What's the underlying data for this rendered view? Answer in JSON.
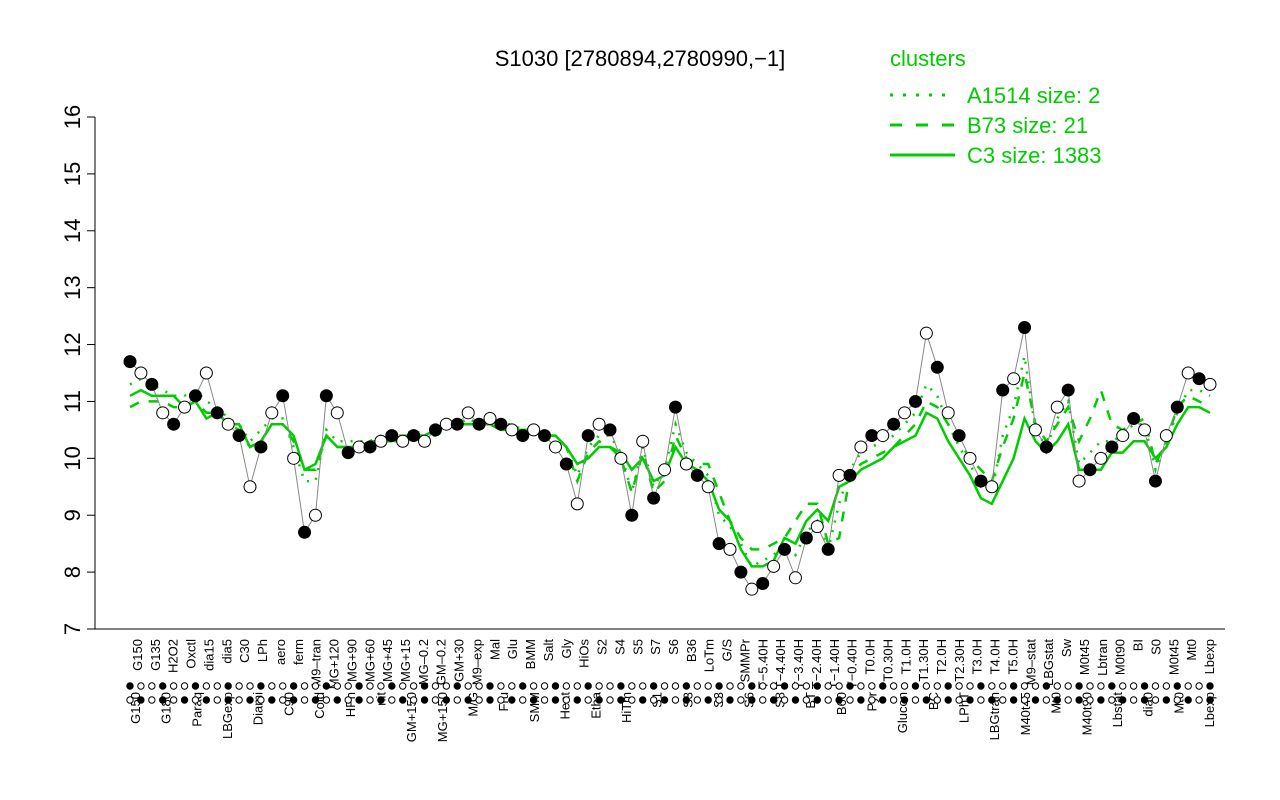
{
  "chart_data": {
    "type": "line",
    "title": "S1030 [2780894,2780990,−1]",
    "xlabel": "",
    "ylabel": "",
    "ylim": [
      7,
      16
    ],
    "yticks": [
      7,
      8,
      9,
      10,
      11,
      12,
      13,
      14,
      15,
      16
    ],
    "colors": {
      "line": "#00cc00",
      "point_fill_open": "#ffffff",
      "point_fill_solid": "#000000",
      "legend": "#00cc00"
    },
    "legend": {
      "title": "clusters",
      "placement": "top-right",
      "entries": [
        {
          "label": "A1514 size: 2",
          "style": "dotted"
        },
        {
          "label": "B73 size: 21",
          "style": "dashed"
        },
        {
          "label": "C3 size: 1383",
          "style": "solid"
        }
      ]
    },
    "categories": [
      "G150",
      "G180",
      "G135",
      "H2O2",
      "Paraq",
      "Oxctl",
      "LBGexp",
      "dia15",
      "Diami",
      "dia5",
      "C30",
      "C90",
      "Cold",
      "LPh",
      "HPh",
      "aero",
      "nit",
      "ferm",
      "GM+150",
      "MG+150",
      "M9–tran",
      "MG+120",
      "MG+90",
      "M9–90",
      "MG+60",
      "MG+45",
      "MG–120",
      "MG+15",
      "MG–0.2",
      "GM–0.1",
      "GM–60",
      "GM–30",
      "GM+5",
      "GM+15",
      "GM+30",
      "GM+60",
      "GM+90",
      "GM+120",
      "GM–0.2",
      "M9–exp",
      "M/G",
      "Mal",
      "Fru",
      "Glu",
      "SMM",
      "BMM",
      "Heat",
      "Salt",
      "Etha",
      "Gly",
      "HiTm",
      "HiOs",
      "S1",
      "S2",
      "S3",
      "S4",
      "S5",
      "S6",
      "S7",
      "S8",
      "BT",
      "B36",
      "B60",
      "LoTm",
      "Pyr",
      "G/S",
      "Glucon",
      "SMMPr",
      "T–5.40H",
      "T–4.40H",
      "T–3.40H",
      "T–2.40H",
      "T–1.40H",
      "T–0.40H",
      "T0.0H",
      "T0.30H",
      "T1.0H",
      "T1.30H",
      "T2.0H",
      "T2.30H",
      "T3.0H",
      "T4.0H",
      "T5.0H",
      "M9–stat",
      "LBGstat",
      "BC",
      "Sw",
      "LPhT",
      "LBGtran",
      "M0t45",
      "M40t45",
      "Lbtran",
      "Mt0",
      "M0t90",
      "Lbstat",
      "BI",
      "S0",
      "dia0",
      "Lbexp",
      "Mt0"
    ],
    "x_tick_labels_row1": [
      "G150",
      "G135",
      "H2O2",
      "Oxctl",
      "dia15",
      "dia5",
      "C30",
      "LPh",
      "aero",
      "ferm",
      "M9–tran",
      "MG+120",
      "MG+90",
      "MG+60",
      "MG+45",
      "MG+15",
      "MG–0.2",
      "GM–0.2",
      "GM+30",
      "M9–exp",
      "Mal",
      "Glu",
      "BMM",
      "Salt",
      "Gly",
      "HiOs",
      "S2",
      "S4",
      "S5",
      "S7",
      "S6",
      "B36",
      "LoTm",
      "G/S",
      "SMMPr",
      "T−5.40H",
      "T−4.40H",
      "T−3.40H",
      "T−2.40H",
      "T−1.40H",
      "T−0.40H",
      "T0.0H",
      "T0.30H",
      "T1.0H",
      "T1.30H",
      "T2.0H",
      "T2.30H",
      "T3.0H",
      "T4.0H",
      "T5.0H",
      "M9–stat",
      "LBGstat",
      "Sw",
      "M0t45",
      "Lbtran",
      "M0t90",
      "BI",
      "S0",
      "M0t45",
      "Mt0",
      "Lbexp"
    ],
    "x_tick_labels_row2": [
      "G150",
      "G180",
      "Paraq",
      "LBGexp",
      "Diami",
      "C90",
      "Cold",
      "HPh",
      "nit",
      "GM+150",
      "MG+150",
      "M/G",
      "Fru",
      "SMM",
      "Heat",
      "Etha",
      "HiTm",
      "S1",
      "S3",
      "S3",
      "S6",
      "S8",
      "BT",
      "B60",
      "Pyr",
      "Glucon",
      "BC",
      "LPhT",
      "LBGtran",
      "M40t45",
      "Mt0",
      "M40t90",
      "Lbstat",
      "dia0",
      "Mt0",
      "Lbexp"
    ],
    "series": [
      {
        "name": "",
        "values": [
          11.7,
          11.5,
          11.3,
          10.8,
          10.6,
          10.9,
          11.1,
          11.5,
          10.8,
          10.6,
          10.4,
          9.5,
          10.2,
          10.8,
          11.1,
          10.0,
          8.7,
          9.0,
          11.1,
          10.8,
          10.1,
          10.2,
          10.2,
          10.3,
          10.4,
          10.3,
          10.4,
          10.3,
          10.5,
          10.6,
          10.6,
          10.8,
          10.6,
          10.7,
          10.6,
          10.5,
          10.4,
          10.5,
          10.4,
          10.2,
          9.9,
          9.2,
          10.4,
          10.6,
          10.5,
          10.0,
          9.0,
          10.3,
          9.3,
          9.8,
          10.9,
          9.9,
          9.7,
          9.5,
          8.5,
          8.4,
          8.0,
          7.7,
          7.8,
          8.1,
          8.4,
          7.9,
          8.6,
          8.8,
          8.4,
          9.7,
          9.7,
          10.2,
          10.4,
          10.4,
          10.6,
          10.8,
          11.0,
          12.2,
          11.6,
          10.8,
          10.4,
          10.0,
          9.6,
          9.5,
          11.2,
          11.4,
          12.3,
          10.5,
          10.2,
          10.9,
          11.2,
          9.6,
          9.8,
          10.0,
          10.2,
          10.4,
          10.7,
          10.5,
          9.6,
          10.4,
          10.9,
          11.5,
          11.4,
          11.3
        ]
      }
    ],
    "clusters": {
      "C3": [
        11.1,
        11.2,
        11.1,
        11.1,
        11.1,
        10.9,
        11.0,
        10.7,
        10.8,
        10.6,
        10.6,
        10.2,
        10.3,
        10.6,
        10.6,
        10.4,
        9.8,
        9.9,
        10.4,
        10.2,
        10.2,
        10.2,
        10.3,
        10.3,
        10.3,
        10.4,
        10.4,
        10.4,
        10.5,
        10.6,
        10.6,
        10.6,
        10.6,
        10.6,
        10.5,
        10.5,
        10.5,
        10.5,
        10.4,
        10.4,
        10.2,
        9.9,
        10.0,
        10.2,
        10.2,
        10.1,
        9.8,
        10.0,
        9.6,
        9.7,
        10.2,
        9.9,
        9.8,
        9.6,
        9.1,
        8.9,
        8.4,
        8.1,
        8.1,
        8.2,
        8.6,
        8.5,
        8.9,
        9.1,
        8.9,
        9.5,
        9.6,
        9.8,
        9.9,
        10.0,
        10.2,
        10.3,
        10.4,
        10.8,
        10.7,
        10.3,
        10.0,
        9.7,
        9.3,
        9.2,
        9.6,
        10.0,
        10.7,
        10.3,
        10.1,
        10.3,
        10.6,
        9.8,
        9.8,
        9.8,
        10.1,
        10.1,
        10.3,
        10.3,
        10.0,
        10.2,
        10.6,
        10.9,
        10.9,
        10.8
      ],
      "B73": [
        10.9,
        11.0,
        11.0,
        11.0,
        10.9,
        10.9,
        11.0,
        10.8,
        10.8,
        10.6,
        10.5,
        10.2,
        10.3,
        10.6,
        10.6,
        10.3,
        9.8,
        9.8,
        10.4,
        10.2,
        10.2,
        10.2,
        10.3,
        10.3,
        10.3,
        10.3,
        10.4,
        10.4,
        10.4,
        10.6,
        10.6,
        10.6,
        10.6,
        10.6,
        10.5,
        10.5,
        10.5,
        10.5,
        10.4,
        10.4,
        10.2,
        9.6,
        10.1,
        10.3,
        10.2,
        10.0,
        9.4,
        10.1,
        9.4,
        9.6,
        10.4,
        10.0,
        9.9,
        9.9,
        9.4,
        8.9,
        8.6,
        8.4,
        8.4,
        8.5,
        8.6,
        8.9,
        9.2,
        9.2,
        8.5,
        8.6,
        9.7,
        9.9,
        10.0,
        10.1,
        10.2,
        10.4,
        10.6,
        11.0,
        10.9,
        10.6,
        10.3,
        10.0,
        9.8,
        9.6,
        10.2,
        10.7,
        11.5,
        10.6,
        10.3,
        10.6,
        10.9,
        10.3,
        10.7,
        11.2,
        10.6,
        10.5,
        10.6,
        10.7,
        9.9,
        10.3,
        10.9,
        11.1,
        11.0,
        10.9
      ],
      "A1514": [
        11.3,
        11.4,
        11.3,
        11.2,
        11.1,
        11.1,
        11.2,
        11.0,
        10.9,
        10.7,
        10.6,
        10.3,
        10.5,
        10.7,
        10.7,
        10.2,
        9.6,
        9.6,
        10.5,
        10.3,
        10.3,
        10.3,
        10.3,
        10.4,
        10.4,
        10.4,
        10.5,
        10.4,
        10.5,
        10.6,
        10.6,
        10.7,
        10.6,
        10.7,
        10.6,
        10.6,
        10.5,
        10.5,
        10.5,
        10.4,
        10.2,
        9.7,
        10.2,
        10.4,
        10.4,
        10.1,
        9.4,
        10.2,
        9.5,
        9.8,
        10.6,
        10.1,
        9.9,
        9.7,
        9.0,
        8.8,
        8.5,
        8.1,
        8.2,
        8.3,
        8.5,
        8.3,
        8.7,
        8.9,
        8.4,
        9.2,
        9.8,
        10.1,
        10.2,
        10.3,
        10.4,
        10.6,
        10.8,
        11.3,
        11.1,
        10.6,
        10.2,
        9.9,
        9.5,
        9.4,
        10.4,
        10.9,
        11.8,
        10.5,
        10.2,
        10.7,
        11.0,
        9.9,
        10.1,
        10.3,
        10.3,
        10.4,
        10.6,
        10.6,
        9.8,
        10.3,
        10.8,
        11.2,
        11.2,
        11.1
      ]
    }
  }
}
